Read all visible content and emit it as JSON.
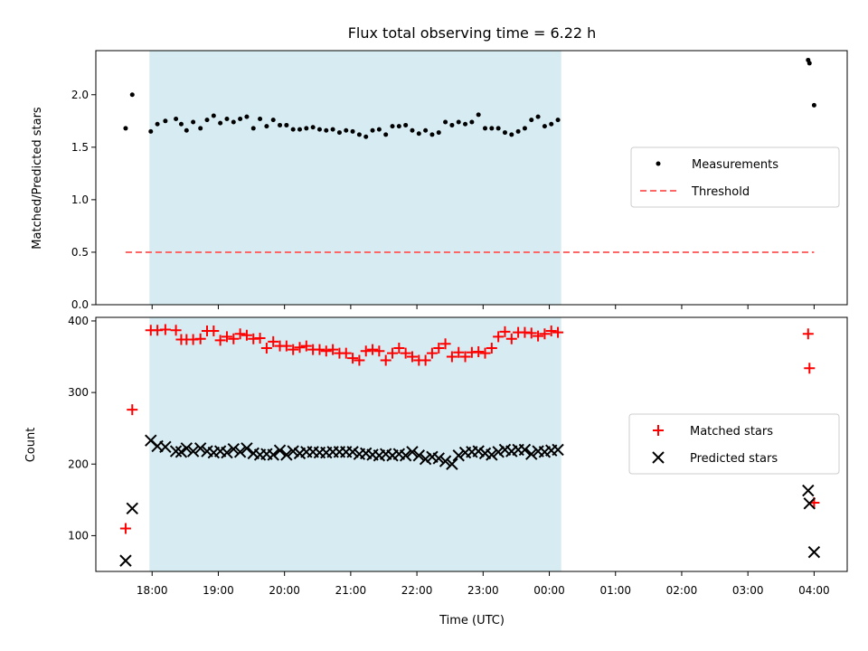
{
  "chart_data": {
    "title": "Flux total observing time = 6.22 h",
    "xlabel": "Time (UTC)",
    "x_ticks": [
      "18:00",
      "19:00",
      "20:00",
      "21:00",
      "22:00",
      "23:00",
      "00:00",
      "01:00",
      "02:00",
      "03:00",
      "04:00"
    ],
    "x_range_hours": [
      17.15,
      28.5
    ],
    "shaded_interval_hours": [
      17.96,
      24.18
    ],
    "shade_color": "#add8e6",
    "panels": [
      {
        "type": "scatter",
        "ylabel": "Matched/Predicted stars",
        "ylim": [
          0,
          2.42
        ],
        "yticks": [
          0,
          0.5,
          1.0,
          1.5,
          2.0
        ],
        "ytick_labels": [
          "0.0",
          "0.5",
          "1.0",
          "1.5",
          "2.0"
        ],
        "legend": {
          "placement": "center-right",
          "items": [
            "Measurements",
            "Threshold"
          ]
        },
        "threshold": {
          "name": "Threshold",
          "value": 0.5,
          "x_range": [
            17.6,
            28.0
          ],
          "color": "#ff6666"
        },
        "series": [
          {
            "name": "Measurements",
            "marker": "dot",
            "color": "#000000",
            "x": [
              17.6,
              17.7,
              17.98,
              18.08,
              18.2,
              18.36,
              18.44,
              18.52,
              18.62,
              18.73,
              18.83,
              18.93,
              19.03,
              19.13,
              19.23,
              19.33,
              19.43,
              19.53,
              19.63,
              19.73,
              19.83,
              19.93,
              20.03,
              20.13,
              20.23,
              20.33,
              20.43,
              20.53,
              20.63,
              20.73,
              20.83,
              20.93,
              21.03,
              21.13,
              21.23,
              21.33,
              21.43,
              21.53,
              21.63,
              21.73,
              21.83,
              21.93,
              22.03,
              22.13,
              22.23,
              22.33,
              22.43,
              22.53,
              22.63,
              22.73,
              22.83,
              22.93,
              23.03,
              23.13,
              23.23,
              23.33,
              23.43,
              23.53,
              23.63,
              23.73,
              23.83,
              23.93,
              24.03,
              24.13,
              27.91,
              27.93,
              28.0
            ],
            "y": [
              1.68,
              2.0,
              1.65,
              1.72,
              1.75,
              1.77,
              1.72,
              1.66,
              1.74,
              1.68,
              1.76,
              1.8,
              1.73,
              1.77,
              1.74,
              1.77,
              1.79,
              1.68,
              1.77,
              1.7,
              1.76,
              1.71,
              1.71,
              1.67,
              1.67,
              1.68,
              1.69,
              1.67,
              1.66,
              1.67,
              1.64,
              1.66,
              1.65,
              1.62,
              1.6,
              1.66,
              1.67,
              1.62,
              1.7,
              1.7,
              1.71,
              1.66,
              1.63,
              1.66,
              1.62,
              1.64,
              1.74,
              1.71,
              1.74,
              1.72,
              1.74,
              1.81,
              1.68,
              1.68,
              1.68,
              1.64,
              1.62,
              1.65,
              1.68,
              1.76,
              1.79,
              1.7,
              1.72,
              1.76,
              2.33,
              2.3,
              1.9
            ]
          }
        ]
      },
      {
        "type": "scatter",
        "ylabel": "Count",
        "ylim": [
          50,
          405
        ],
        "yticks": [
          100,
          200,
          300,
          400
        ],
        "ytick_labels": [
          "100",
          "200",
          "300",
          "400"
        ],
        "legend": {
          "placement": "center-right",
          "items": [
            "Matched stars",
            "Predicted stars"
          ]
        },
        "series": [
          {
            "name": "Matched stars",
            "marker": "plus",
            "color": "#ff0000",
            "x": [
              17.6,
              17.7,
              17.98,
              18.08,
              18.2,
              18.36,
              18.44,
              18.52,
              18.62,
              18.73,
              18.83,
              18.93,
              19.03,
              19.13,
              19.23,
              19.33,
              19.43,
              19.53,
              19.63,
              19.73,
              19.83,
              19.93,
              20.03,
              20.13,
              20.23,
              20.33,
              20.43,
              20.53,
              20.63,
              20.73,
              20.83,
              20.93,
              21.03,
              21.13,
              21.23,
              21.33,
              21.43,
              21.53,
              21.63,
              21.73,
              21.83,
              21.93,
              22.03,
              22.13,
              22.23,
              22.33,
              22.43,
              22.53,
              22.63,
              22.73,
              22.83,
              22.93,
              23.03,
              23.13,
              23.23,
              23.33,
              23.43,
              23.53,
              23.63,
              23.73,
              23.83,
              23.93,
              24.03,
              24.13,
              27.91,
              27.93,
              28.0
            ],
            "y": [
              110,
              276,
              387,
              387,
              388,
              387,
              374,
              374,
              374,
              375,
              386,
              386,
              373,
              378,
              375,
              382,
              380,
              375,
              376,
              362,
              371,
              365,
              365,
              360,
              363,
              365,
              360,
              360,
              358,
              360,
              355,
              355,
              348,
              345,
              358,
              360,
              358,
              345,
              355,
              362,
              355,
              350,
              345,
              345,
              355,
              362,
              368,
              350,
              356,
              350,
              356,
              357,
              355,
              362,
              378,
              385,
              375,
              384,
              384,
              383,
              379,
              382,
              386,
              384,
              382,
              334,
              146
            ]
          },
          {
            "name": "Predicted stars",
            "marker": "x",
            "color": "#000000",
            "x": [
              17.6,
              17.7,
              17.98,
              18.08,
              18.2,
              18.36,
              18.44,
              18.52,
              18.62,
              18.73,
              18.83,
              18.93,
              19.03,
              19.13,
              19.23,
              19.33,
              19.43,
              19.53,
              19.63,
              19.73,
              19.83,
              19.93,
              20.03,
              20.13,
              20.23,
              20.33,
              20.43,
              20.53,
              20.63,
              20.73,
              20.83,
              20.93,
              21.03,
              21.13,
              21.23,
              21.33,
              21.43,
              21.53,
              21.63,
              21.73,
              21.83,
              21.93,
              22.03,
              22.13,
              22.23,
              22.33,
              22.43,
              22.53,
              22.63,
              22.73,
              22.83,
              22.93,
              23.03,
              23.13,
              23.23,
              23.33,
              23.43,
              23.53,
              23.63,
              23.73,
              23.83,
              23.93,
              24.03,
              24.13,
              27.91,
              27.93,
              28.0
            ],
            "y": [
              65,
              138,
              233,
              225,
              224,
              218,
              217,
              222,
              218,
              222,
              218,
              216,
              218,
              216,
              221,
              217,
              222,
              215,
              213,
              214,
              213,
              219,
              213,
              218,
              215,
              217,
              217,
              216,
              216,
              217,
              217,
              217,
              217,
              214,
              215,
              213,
              212,
              214,
              212,
              214,
              212,
              217,
              212,
              207,
              210,
              208,
              204,
              200,
              212,
              216,
              217,
              218,
              215,
              213,
              217,
              220,
              218,
              220,
              220,
              214,
              218,
              217,
              219,
              220,
              163,
              145,
              77
            ]
          }
        ]
      }
    ]
  }
}
